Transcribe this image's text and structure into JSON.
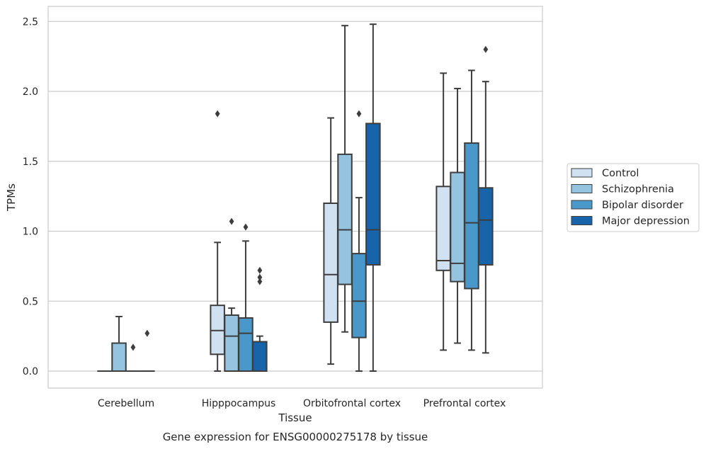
{
  "chart_data": {
    "type": "box",
    "xlabel": "Tissue",
    "ylabel": "TPMs",
    "caption": "Gene expression for ENSG00000275178 by tissue",
    "ylim": [
      -0.12,
      2.62
    ],
    "yticks": [
      0.0,
      0.5,
      1.0,
      1.5,
      2.0,
      2.5
    ],
    "ytick_labels": [
      "0.0",
      "0.5",
      "1.0",
      "1.5",
      "2.0",
      "2.5"
    ],
    "grid": "horizontal",
    "legend_position": "right",
    "categories": [
      "Cerebellum",
      "Hipppocampus",
      "Orbitofrontal cortex",
      "Prefrontal cortex"
    ],
    "series": [
      {
        "name": "Control",
        "color": "#d0e1f2",
        "boxes": [
          {
            "min": 0,
            "q1": 0,
            "median": 0,
            "q3": 0,
            "max": 0,
            "outliers": []
          },
          {
            "min": 0,
            "q1": 0.12,
            "median": 0.29,
            "q3": 0.47,
            "max": 0.92,
            "outliers": [
              1.84
            ]
          },
          {
            "min": 0.05,
            "q1": 0.35,
            "median": 0.69,
            "q3": 1.2,
            "max": 1.81,
            "outliers": []
          },
          {
            "min": 0.15,
            "q1": 0.72,
            "median": 0.79,
            "q3": 1.32,
            "max": 2.13,
            "outliers": []
          }
        ]
      },
      {
        "name": "Schizophrenia",
        "color": "#94c4df",
        "boxes": [
          {
            "min": 0,
            "q1": 0,
            "median": 0,
            "q3": 0.2,
            "max": 0.39,
            "outliers": []
          },
          {
            "min": 0,
            "q1": 0,
            "median": 0.25,
            "q3": 0.4,
            "max": 0.45,
            "outliers": [
              1.07
            ]
          },
          {
            "min": 0.28,
            "q1": 0.62,
            "median": 1.01,
            "q3": 1.55,
            "max": 2.47,
            "outliers": []
          },
          {
            "min": 0.2,
            "q1": 0.64,
            "median": 0.77,
            "q3": 1.42,
            "max": 2.02,
            "outliers": []
          }
        ]
      },
      {
        "name": "Bipolar disorder",
        "color": "#4a98c9",
        "boxes": [
          {
            "min": 0,
            "q1": 0,
            "median": 0,
            "q3": 0,
            "max": 0,
            "outliers": [
              0.17
            ]
          },
          {
            "min": 0,
            "q1": 0,
            "median": 0.27,
            "q3": 0.38,
            "max": 0.93,
            "outliers": [
              1.03
            ]
          },
          {
            "min": 0,
            "q1": 0.24,
            "median": 0.5,
            "q3": 0.84,
            "max": 1.24,
            "outliers": [
              1.84
            ]
          },
          {
            "min": 0.15,
            "q1": 0.59,
            "median": 1.06,
            "q3": 1.63,
            "max": 2.15,
            "outliers": []
          }
        ]
      },
      {
        "name": "Major depression",
        "color": "#1764ab",
        "boxes": [
          {
            "min": 0,
            "q1": 0,
            "median": 0,
            "q3": 0,
            "max": 0,
            "outliers": [
              0.27
            ]
          },
          {
            "min": 0,
            "q1": 0,
            "median": 0.21,
            "q3": 0.21,
            "max": 0.25,
            "outliers": [
              0.64,
              0.67,
              0.72
            ]
          },
          {
            "min": 0,
            "q1": 0.76,
            "median": 1.01,
            "q3": 1.77,
            "max": 2.48,
            "outliers": []
          },
          {
            "min": 0.13,
            "q1": 0.76,
            "median": 1.08,
            "q3": 1.31,
            "max": 2.07,
            "outliers": [
              2.3
            ]
          }
        ]
      }
    ]
  }
}
